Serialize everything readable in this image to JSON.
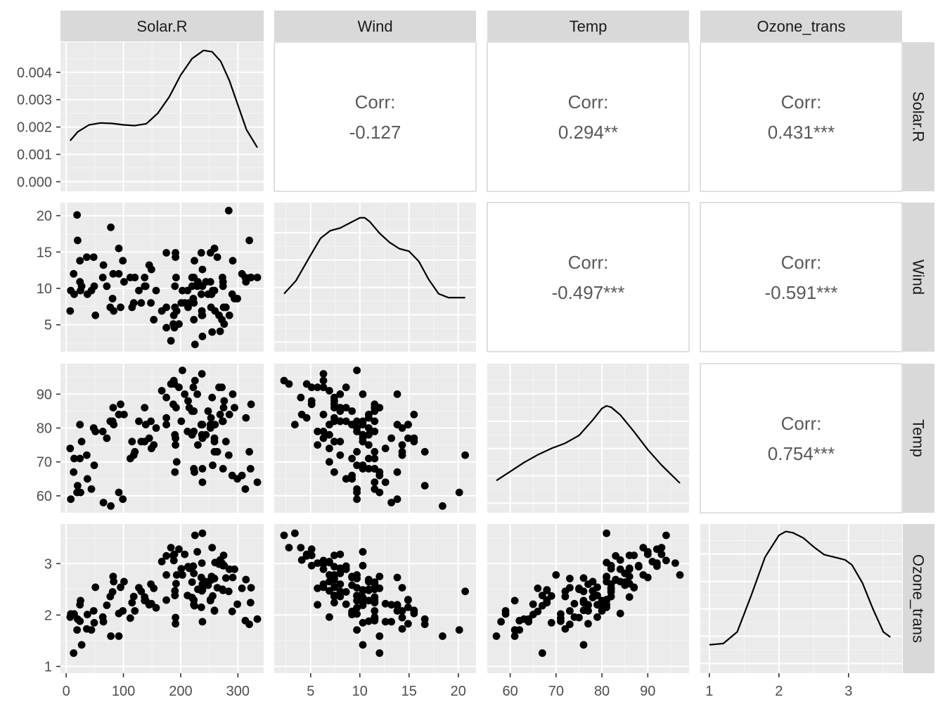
{
  "chart_data": {
    "type": "scatter_matrix",
    "title": "",
    "variables": [
      "Solar.R",
      "Wind",
      "Temp",
      "Ozone_trans"
    ],
    "correlation_label": "Corr:",
    "correlations": [
      {
        "row": 0,
        "col": 1,
        "value": "-0.127"
      },
      {
        "row": 0,
        "col": 2,
        "value": "0.294**"
      },
      {
        "row": 0,
        "col": 3,
        "value": "0.431***"
      },
      {
        "row": 1,
        "col": 2,
        "value": "-0.497***"
      },
      {
        "row": 1,
        "col": 3,
        "value": "-0.591***"
      },
      {
        "row": 2,
        "col": 3,
        "value": "0.754***"
      }
    ],
    "axes": {
      "Solar.R": {
        "range": [
          -10,
          345
        ],
        "ticks": [
          0,
          100,
          200,
          300
        ],
        "tick_labels": [
          "0",
          "100",
          "200",
          "300"
        ]
      },
      "Wind": {
        "range": [
          1.3,
          21.8
        ],
        "ticks": [
          5,
          10,
          15,
          20
        ],
        "tick_labels": [
          "5",
          "10",
          "15",
          "20"
        ]
      },
      "Temp": {
        "range": [
          55,
          99
        ],
        "ticks": [
          60,
          70,
          80,
          90
        ],
        "tick_labels": [
          "60",
          "70",
          "80",
          "90"
        ]
      },
      "Ozone_trans": {
        "range": [
          0.87,
          3.77
        ],
        "ticks": [
          1,
          2,
          3
        ],
        "tick_labels": [
          "1",
          "2",
          "3"
        ]
      }
    },
    "density_axis": {
      "range": [
        -0.00035,
        0.0051
      ],
      "ticks": [
        0,
        0.001,
        0.002,
        0.003,
        0.004
      ],
      "tick_labels": [
        "0.000",
        "0.001",
        "0.002",
        "0.003",
        "0.004"
      ]
    },
    "densities": {
      "Solar.R": {
        "x": [
          7,
          20,
          40,
          60,
          80,
          100,
          120,
          140,
          160,
          180,
          200,
          220,
          240,
          255,
          270,
          285,
          300,
          315,
          334
        ],
        "y": [
          0.0015,
          0.00182,
          0.00208,
          0.00215,
          0.00213,
          0.00208,
          0.00205,
          0.00212,
          0.0025,
          0.0031,
          0.0039,
          0.0045,
          0.0048,
          0.00475,
          0.0044,
          0.0037,
          0.0028,
          0.0019,
          0.00125
        ]
      },
      "Wind": {
        "x": [
          2.3,
          3.5,
          5,
          6,
          7,
          7.5,
          8,
          9,
          10,
          10.5,
          11,
          12,
          13,
          14,
          15,
          16,
          17,
          18,
          19,
          20,
          20.7
        ],
        "y": [
          0.45,
          0.55,
          0.75,
          0.88,
          0.94,
          0.95,
          0.96,
          1.0,
          1.04,
          1.04,
          1.01,
          0.92,
          0.85,
          0.8,
          0.78,
          0.7,
          0.56,
          0.45,
          0.42,
          0.42,
          0.42
        ]
      },
      "Temp": {
        "x": [
          57,
          60,
          63,
          66,
          69,
          72,
          75,
          78,
          80,
          81,
          82,
          84,
          87,
          90,
          93,
          97
        ],
        "y": [
          0.25,
          0.32,
          0.39,
          0.45,
          0.5,
          0.54,
          0.6,
          0.72,
          0.81,
          0.83,
          0.82,
          0.76,
          0.63,
          0.49,
          0.37,
          0.23
        ]
      },
      "Ozone_trans": {
        "x": [
          1,
          1.2,
          1.4,
          1.6,
          1.8,
          2.0,
          2.1,
          2.2,
          2.35,
          2.5,
          2.65,
          2.8,
          2.95,
          3.05,
          3.2,
          3.35,
          3.5,
          3.6
        ],
        "y": [
          0.22,
          0.23,
          0.32,
          0.6,
          0.9,
          1.07,
          1.1,
          1.09,
          1.05,
          0.98,
          0.92,
          0.9,
          0.88,
          0.84,
          0.7,
          0.5,
          0.32,
          0.28
        ]
      }
    },
    "points": [
      [
        190,
        7.4,
        67,
        2.38
      ],
      [
        118,
        8,
        72,
        2.36
      ],
      [
        149,
        12.6,
        74,
        2.22
      ],
      [
        313,
        11.5,
        62,
        1.89
      ],
      [
        299,
        8.6,
        65,
        2.21
      ],
      [
        99,
        13.8,
        59,
        2.08
      ],
      [
        19,
        20.1,
        61,
        1.71
      ],
      [
        256,
        9.7,
        69,
        2.37
      ],
      [
        290,
        9.2,
        66,
        2.07
      ],
      [
        274,
        10.9,
        68,
        2.48
      ],
      [
        65,
        13.2,
        58,
        1.87
      ],
      [
        334,
        11.5,
        64,
        1.92
      ],
      [
        307,
        12,
        66,
        2.52
      ],
      [
        78,
        18.4,
        57,
        1.59
      ],
      [
        322,
        11.5,
        68,
        2.24
      ],
      [
        44,
        9.7,
        62,
        1.71
      ],
      [
        8,
        9.7,
        59,
        2.02
      ],
      [
        320,
        16.6,
        73,
        1.82
      ],
      [
        25,
        9.7,
        61,
        2.28
      ],
      [
        92,
        12,
        61,
        1.59
      ],
      [
        13,
        12,
        67,
        1.26
      ],
      [
        252,
        14.9,
        81,
        2.3
      ],
      [
        223,
        5.7,
        79,
        2.2
      ],
      [
        279,
        7.4,
        76,
        2.72
      ],
      [
        127,
        9.7,
        82,
        2.53
      ],
      [
        291,
        13.8,
        90,
        2.73
      ],
      [
        323,
        11.5,
        87,
        2.53
      ],
      [
        148,
        8,
        82,
        2.6
      ],
      [
        191,
        14.9,
        77,
        1.83
      ],
      [
        284,
        20.7,
        72,
        2.46
      ],
      [
        37,
        9.2,
        65,
        2.01
      ],
      [
        120,
        11.5,
        73,
        2.08
      ],
      [
        137,
        10.3,
        76,
        2.28
      ],
      [
        269,
        4.1,
        84,
        3.07
      ],
      [
        248,
        9.2,
        85,
        2.58
      ],
      [
        236,
        9.2,
        81,
        2.73
      ],
      [
        101,
        10.9,
        84,
        2.65
      ],
      [
        175,
        4.6,
        83,
        3.15
      ],
      [
        314,
        10.9,
        83,
        2.69
      ],
      [
        276,
        5.1,
        88,
        2.96
      ],
      [
        267,
        6.3,
        92,
        2.99
      ],
      [
        272,
        5.7,
        92,
        3.01
      ],
      [
        175,
        7.4,
        89,
        2.78
      ],
      [
        264,
        14.3,
        73,
        2.53
      ],
      [
        175,
        14.9,
        81,
        2.29
      ],
      [
        48,
        14.3,
        80,
        2.08
      ],
      [
        260,
        6.9,
        81,
        3.02
      ],
      [
        274,
        10.3,
        82,
        2.96
      ],
      [
        285,
        6.3,
        84,
        2.89
      ],
      [
        187,
        5.1,
        87,
        3.16
      ],
      [
        220,
        11.5,
        85,
        2.64
      ],
      [
        7,
        6.9,
        74,
        1.96
      ],
      [
        294,
        8.6,
        86,
        2.89
      ],
      [
        223,
        8,
        85,
        2.81
      ],
      [
        81,
        8.6,
        82,
        2.45
      ],
      [
        82,
        12,
        86,
        2.75
      ],
      [
        213,
        7.4,
        88,
        2.94
      ],
      [
        275,
        7.4,
        86,
        3.16
      ],
      [
        253,
        7.4,
        83,
        2.68
      ],
      [
        254,
        9.2,
        81,
        2.75
      ],
      [
        83,
        6.9,
        81,
        2.65
      ],
      [
        24,
        13.8,
        81,
        2.2
      ],
      [
        77,
        7.4,
        82,
        2.36
      ],
      [
        255,
        4,
        89,
        3.31
      ],
      [
        229,
        10.3,
        90,
        3.23
      ],
      [
        207,
        8,
        90,
        3.18
      ],
      [
        222,
        8.6,
        92,
        2.95
      ],
      [
        137,
        11.5,
        86,
        2.35
      ],
      [
        192,
        11.5,
        86,
        2.61
      ],
      [
        273,
        11.5,
        82,
        2.5
      ],
      [
        157,
        9.7,
        80,
        2.14
      ],
      [
        64,
        11.5,
        79,
        1.96
      ],
      [
        71,
        10.3,
        77,
        2.19
      ],
      [
        51,
        6.3,
        79,
        2.54
      ],
      [
        115,
        7.4,
        76,
        2.24
      ],
      [
        244,
        10.9,
        78,
        2.65
      ],
      [
        190,
        10.3,
        78,
        2.47
      ],
      [
        259,
        15.5,
        77,
        2.08
      ],
      [
        36,
        14.3,
        72,
        1.73
      ],
      [
        212,
        9.7,
        79,
        2.38
      ],
      [
        238,
        3.4,
        81,
        3.59
      ],
      [
        215,
        8,
        86,
        2.91
      ],
      [
        153,
        5.7,
        75,
        2.52
      ],
      [
        203,
        9.7,
        97,
        2.78
      ],
      [
        225,
        2.3,
        94,
        3.55
      ],
      [
        237,
        6.3,
        96,
        3.01
      ],
      [
        188,
        6.3,
        94,
        3.06
      ],
      [
        167,
        6.9,
        91,
        3.04
      ],
      [
        197,
        5.1,
        92,
        3.28
      ],
      [
        183,
        2.8,
        93,
        3.31
      ],
      [
        189,
        4.6,
        93,
        3.18
      ],
      [
        95,
        7.4,
        87,
        2.54
      ],
      [
        92,
        15.5,
        84,
        2.03
      ],
      [
        252,
        10.9,
        80,
        2.28
      ],
      [
        220,
        10.3,
        78,
        2.34
      ],
      [
        230,
        10.9,
        75,
        2.5
      ],
      [
        259,
        9.7,
        73,
        2.71
      ],
      [
        236,
        14.9,
        81,
        2.15
      ],
      [
        259,
        15.5,
        76,
        2.09
      ],
      [
        238,
        6.3,
        77,
        2.6
      ],
      [
        24,
        10.9,
        71,
        1.88
      ],
      [
        112,
        11.5,
        71,
        1.94
      ],
      [
        237,
        6.9,
        78,
        2.47
      ],
      [
        224,
        13.8,
        67,
        2.18
      ],
      [
        27,
        10.3,
        76,
        1.42
      ],
      [
        238,
        10.3,
        68,
        2.49
      ],
      [
        201,
        8,
        82,
        2.9
      ],
      [
        238,
        12.6,
        64,
        1.87
      ],
      [
        14,
        9.2,
        71,
        2.02
      ],
      [
        139,
        10.3,
        81,
        2.28
      ],
      [
        49,
        10.3,
        69,
        1.85
      ],
      [
        20,
        16.6,
        63,
        1.92
      ],
      [
        193,
        6.9,
        70,
        2.78
      ],
      [
        145,
        13.2,
        77,
        2.2
      ],
      [
        191,
        14.3,
        75,
        1.95
      ],
      [
        131,
        8,
        76,
        2.46
      ],
      [
        223,
        11.5,
        68,
        2.29
      ]
    ]
  },
  "colors": {
    "panel_bg": "#ebebeb",
    "grid_major": "#ffffff",
    "grid_minor": "#f5f5f5",
    "strip_bg": "#d9d9d9",
    "strip_text": "#1a1a1a",
    "tick_text": "#4d4d4d",
    "corr_text": "#595959",
    "point": "#000000",
    "line": "#000000",
    "frame": "#cccccc"
  }
}
